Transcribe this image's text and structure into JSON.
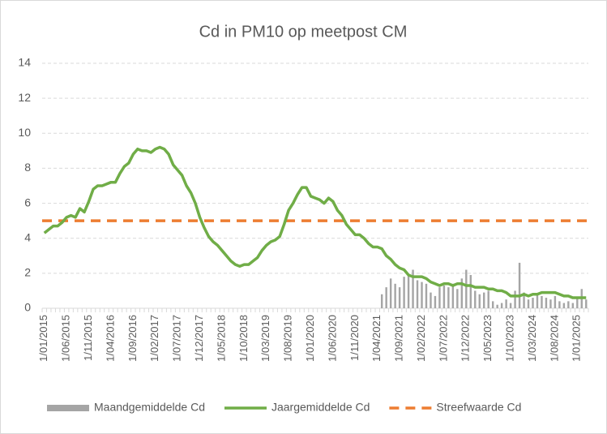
{
  "chart_data": {
    "type": "bar",
    "title": "Cd in PM10 op meetpost CM",
    "categories": [
      "1/01/2015",
      null,
      null,
      null,
      null,
      "1/06/2015",
      null,
      null,
      null,
      null,
      "1/11/2015",
      null,
      null,
      null,
      null,
      "1/04/2016",
      null,
      null,
      null,
      null,
      "1/09/2016",
      null,
      null,
      null,
      null,
      "1/02/2017",
      null,
      null,
      null,
      null,
      "1/07/2017",
      null,
      null,
      null,
      null,
      "1/12/2017",
      null,
      null,
      null,
      null,
      "1/05/2018",
      null,
      null,
      null,
      null,
      "1/10/2018",
      null,
      null,
      null,
      null,
      "1/03/2019",
      null,
      null,
      null,
      null,
      "1/08/2019",
      null,
      null,
      null,
      null,
      "1/01/2020",
      null,
      null,
      null,
      null,
      "1/06/2020",
      null,
      null,
      null,
      null,
      "1/11/2020",
      null,
      null,
      null,
      null,
      "1/04/2021",
      null,
      null,
      null,
      null,
      "1/09/2021",
      null,
      null,
      null,
      null,
      "1/02/2022",
      null,
      null,
      null,
      null,
      "1/07/2022",
      null,
      null,
      null,
      null,
      "1/12/2022",
      null,
      null,
      null,
      null,
      "1/05/2023",
      null,
      null,
      null,
      null,
      "1/10/2023",
      null,
      null,
      null,
      null,
      "1/03/2024",
      null,
      null,
      null,
      null,
      "1/08/2024",
      null,
      null,
      null,
      null,
      "1/01/2025",
      null,
      null
    ],
    "series": [
      {
        "name": "Maandgemiddelde Cd",
        "type": "bar",
        "color": "#a5a5a5",
        "values": [
          null,
          null,
          null,
          null,
          null,
          null,
          null,
          null,
          null,
          null,
          null,
          null,
          null,
          null,
          null,
          null,
          null,
          null,
          null,
          null,
          null,
          null,
          null,
          null,
          null,
          null,
          null,
          null,
          null,
          null,
          null,
          null,
          null,
          null,
          null,
          null,
          null,
          null,
          null,
          null,
          null,
          null,
          null,
          null,
          null,
          null,
          null,
          null,
          null,
          null,
          null,
          null,
          null,
          null,
          null,
          null,
          null,
          null,
          null,
          null,
          null,
          null,
          null,
          null,
          null,
          null,
          null,
          null,
          null,
          null,
          null,
          null,
          null,
          null,
          null,
          null,
          0.8,
          1.2,
          1.7,
          1.4,
          1.2,
          1.8,
          1.9,
          2.2,
          1.6,
          1.5,
          1.4,
          0.9,
          0.7,
          1.2,
          1.3,
          1.2,
          1.4,
          1.1,
          1.7,
          2.2,
          1.9,
          1.0,
          0.8,
          0.9,
          1.0,
          0.4,
          0.2,
          0.3,
          0.5,
          0.3,
          1.0,
          2.6,
          0.9,
          0.5,
          0.6,
          0.8,
          0.7,
          0.6,
          0.5,
          0.7,
          0.4,
          0.3,
          0.4,
          0.3,
          0.6,
          1.1,
          0.5
        ]
      },
      {
        "name": "Jaargemiddelde Cd",
        "type": "line",
        "color": "#70ad47",
        "values": [
          4.3,
          4.5,
          4.7,
          4.7,
          4.9,
          5.2,
          5.3,
          5.2,
          5.7,
          5.5,
          6.1,
          6.8,
          7.0,
          7.0,
          7.1,
          7.2,
          7.2,
          7.7,
          8.1,
          8.3,
          8.8,
          9.1,
          9.0,
          9.0,
          8.9,
          9.1,
          9.2,
          9.1,
          8.8,
          8.2,
          7.9,
          7.6,
          7.0,
          6.6,
          6.0,
          5.2,
          4.6,
          4.1,
          3.8,
          3.6,
          3.3,
          3.0,
          2.7,
          2.5,
          2.4,
          2.5,
          2.5,
          2.7,
          2.9,
          3.3,
          3.6,
          3.8,
          3.9,
          4.1,
          4.8,
          5.6,
          6.0,
          6.5,
          6.9,
          6.9,
          6.4,
          6.3,
          6.2,
          6.0,
          6.3,
          6.1,
          5.6,
          5.3,
          4.8,
          4.5,
          4.2,
          4.2,
          4.0,
          3.7,
          3.5,
          3.5,
          3.4,
          3.0,
          2.8,
          2.5,
          2.3,
          2.2,
          1.9,
          1.8,
          1.8,
          1.8,
          1.7,
          1.5,
          1.4,
          1.3,
          1.4,
          1.4,
          1.3,
          1.4,
          1.4,
          1.3,
          1.3,
          1.2,
          1.2,
          1.2,
          1.1,
          1.1,
          1.0,
          1.0,
          0.9,
          0.7,
          0.7,
          0.7,
          0.8,
          0.7,
          0.8,
          0.8,
          0.9,
          0.9,
          0.9,
          0.9,
          0.8,
          0.7,
          0.7,
          0.6,
          0.6,
          0.6,
          0.6
        ]
      },
      {
        "name": "Streefwaarde Cd",
        "type": "reference",
        "color": "#ed7d31",
        "dashed": true,
        "value": 5
      }
    ],
    "ylim": [
      0,
      14
    ],
    "yticks": [
      0,
      2,
      4,
      6,
      8,
      10,
      12,
      14
    ],
    "grid": true,
    "legend": "bottom"
  }
}
